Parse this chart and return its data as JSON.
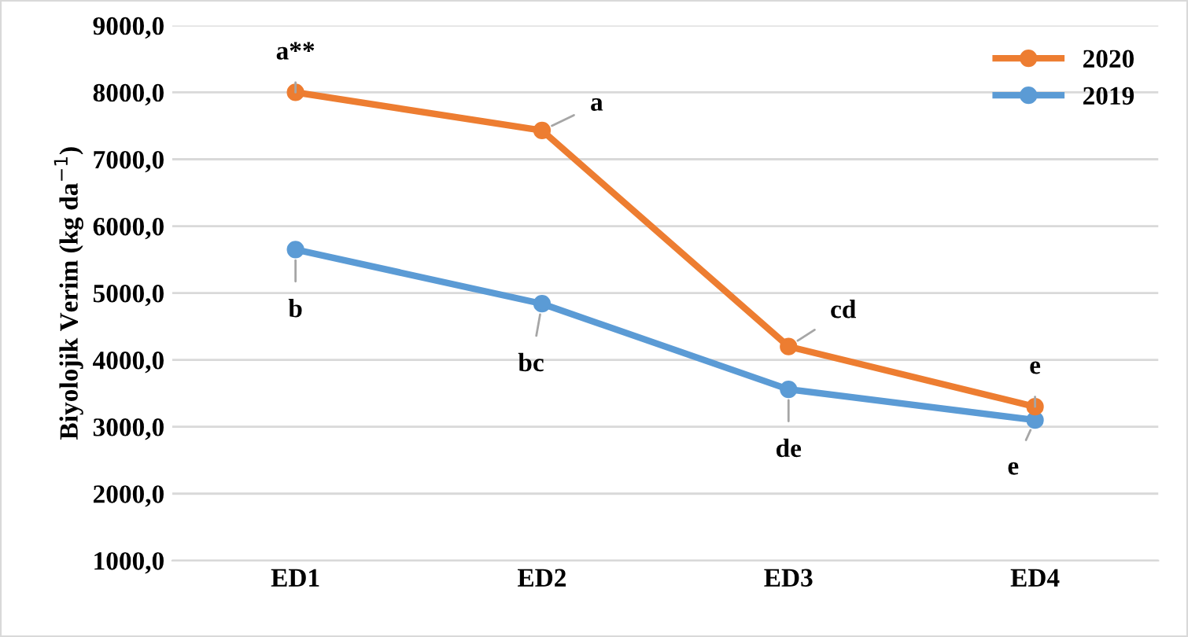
{
  "chart_data": {
    "type": "line",
    "ylabel": "Biyolojik Verim (kg da$^{−1}$)",
    "categories": [
      "ED1",
      "ED2",
      "ED3",
      "ED4"
    ],
    "series": [
      {
        "name": "2019",
        "color": "#5b9bd5",
        "values": [
          5650,
          4840,
          3560,
          3100
        ]
      },
      {
        "name": "2020",
        "color": "#ed7d31",
        "values": [
          8000,
          7430,
          4200,
          3300
        ]
      }
    ],
    "ylim": [
      1000,
      9000
    ],
    "yticks": [
      {
        "value": 1000,
        "label": "1000,0"
      },
      {
        "value": 2000,
        "label": "2000,0"
      },
      {
        "value": 3000,
        "label": "3000,0"
      },
      {
        "value": 4000,
        "label": "4000,0"
      },
      {
        "value": 5000,
        "label": "5000,0"
      },
      {
        "value": 6000,
        "label": "6000,0"
      },
      {
        "value": 7000,
        "label": "7000,0"
      },
      {
        "value": 8000,
        "label": "8000,0"
      },
      {
        "value": 9000,
        "label": "9000,0"
      }
    ],
    "grid": "y",
    "legend": "top right",
    "marker": "circle",
    "line_style": "solid",
    "annotations": [
      {
        "text": "b",
        "x": "ED1",
        "y": 5650
      },
      {
        "text": "bc",
        "x": "ED2",
        "y": 4840
      },
      {
        "text": "de",
        "x": "ED3",
        "y": 3560
      },
      {
        "text": "e",
        "x": "ED4",
        "y": 3100
      },
      {
        "text": "a**",
        "x": "ED1",
        "y": 8000
      },
      {
        "text": "a",
        "x": "ED2",
        "y": 7430
      },
      {
        "text": "cd",
        "x": "ED3",
        "y": 4200
      },
      {
        "text": "e",
        "x": "ED4",
        "y": 3300
      }
    ]
  }
}
